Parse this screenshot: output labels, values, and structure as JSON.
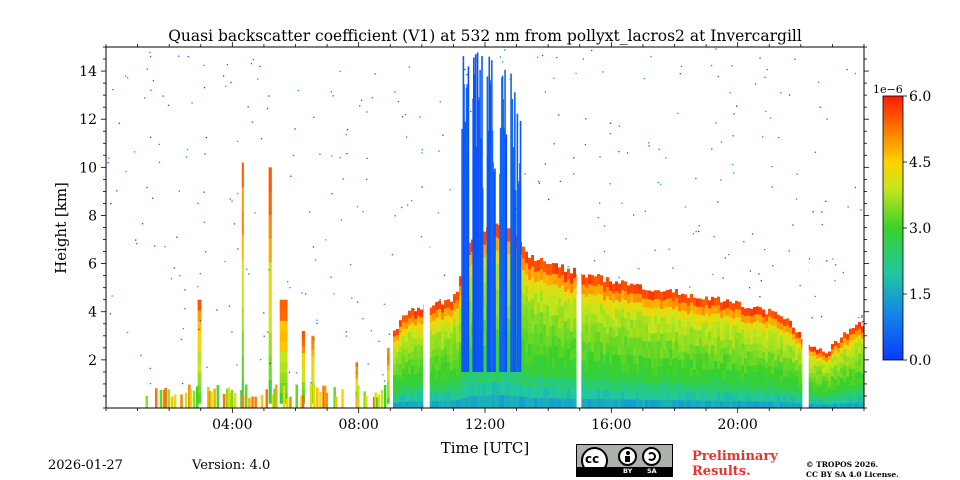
{
  "chart_data": {
    "type": "heatmap",
    "title": "Quasi backscatter coefficient (V1) at 532 nm from pollyxt_lacros2 at Invercargill",
    "xlabel": "Time [UTC]",
    "ylabel": "Height [km]",
    "xlim_hours": [
      0,
      24
    ],
    "ylim_km": [
      0,
      15
    ],
    "x_ticks": [
      {
        "value": 4,
        "label": "04:00"
      },
      {
        "value": 8,
        "label": "08:00"
      },
      {
        "value": 12,
        "label": "12:00"
      },
      {
        "value": 16,
        "label": "16:00"
      },
      {
        "value": 20,
        "label": "20:00"
      }
    ],
    "y_ticks": [
      {
        "value": 2,
        "label": "2"
      },
      {
        "value": 4,
        "label": "4"
      },
      {
        "value": 6,
        "label": "6"
      },
      {
        "value": 8,
        "label": "8"
      },
      {
        "value": 10,
        "label": "10"
      },
      {
        "value": 12,
        "label": "12"
      },
      {
        "value": 14,
        "label": "14"
      }
    ],
    "colorbar": {
      "range": [
        0.0,
        6.0
      ],
      "exponent_label": "1e−6",
      "ticks": [
        {
          "value": 0.0,
          "label": "0.0"
        },
        {
          "value": 1.5,
          "label": "1.5"
        },
        {
          "value": 3.0,
          "label": "3.0"
        },
        {
          "value": 4.5,
          "label": "4.5"
        },
        {
          "value": 6.0,
          "label": "6.0"
        }
      ]
    },
    "profile_top_km": [
      [
        9.0,
        3.0
      ],
      [
        9.5,
        4.0
      ],
      [
        10.0,
        4.2
      ],
      [
        10.5,
        4.3
      ],
      [
        11.0,
        4.6
      ],
      [
        11.3,
        6.0
      ],
      [
        11.5,
        7.0
      ],
      [
        12.0,
        7.5
      ],
      [
        12.5,
        7.8
      ],
      [
        13.0,
        7.0
      ],
      [
        13.3,
        6.3
      ],
      [
        14.0,
        6.0
      ],
      [
        15.0,
        5.6
      ],
      [
        16.0,
        5.3
      ],
      [
        17.0,
        5.0
      ],
      [
        18.0,
        4.8
      ],
      [
        19.0,
        4.6
      ],
      [
        20.0,
        4.3
      ],
      [
        21.0,
        4.0
      ],
      [
        21.5,
        3.7
      ],
      [
        22.0,
        3.0
      ],
      [
        22.2,
        2.7
      ],
      [
        22.8,
        2.3
      ],
      [
        23.5,
        3.3
      ],
      [
        24.0,
        3.6
      ]
    ],
    "gaps_hours": [
      [
        10.05,
        10.25
      ],
      [
        14.9,
        15.05
      ],
      [
        22.05,
        22.25
      ]
    ],
    "cloud_columns": [
      {
        "t0": 11.25,
        "t1": 11.45
      },
      {
        "t0": 11.6,
        "t1": 11.9
      },
      {
        "t0": 12.05,
        "t1": 12.3
      },
      {
        "t0": 12.45,
        "t1": 12.65
      },
      {
        "t0": 12.8,
        "t1": 12.95
      },
      {
        "t0": 13.0,
        "t1": 13.1
      }
    ],
    "early_plumes": [
      {
        "t": 2.9,
        "w": 0.12,
        "top": 4.5
      },
      {
        "t": 4.3,
        "w": 0.06,
        "top": 10.2
      },
      {
        "t": 5.15,
        "w": 0.1,
        "top": 10.0
      },
      {
        "t": 5.5,
        "w": 0.25,
        "top": 4.5
      },
      {
        "t": 6.2,
        "w": 0.1,
        "top": 3.2
      },
      {
        "t": 6.5,
        "w": 0.1,
        "top": 3.0
      },
      {
        "t": 7.9,
        "w": 0.08,
        "top": 1.9
      },
      {
        "t": 8.9,
        "w": 0.08,
        "top": 2.5
      }
    ]
  },
  "footer": {
    "date": "2026-01-27",
    "version": "Version: 4.0",
    "preliminary_line1": "Preliminary",
    "preliminary_line2": "Results.",
    "copyright_line1": "© TROPOS 2026.",
    "copyright_line2": "CC BY SA 4.0 License."
  },
  "license_badge": {
    "cc": "cc",
    "by": "BY",
    "sa": "SA"
  },
  "colors": {
    "low": "#0a3cff",
    "mid": "#3ad12a",
    "high": "#ff2a00"
  }
}
